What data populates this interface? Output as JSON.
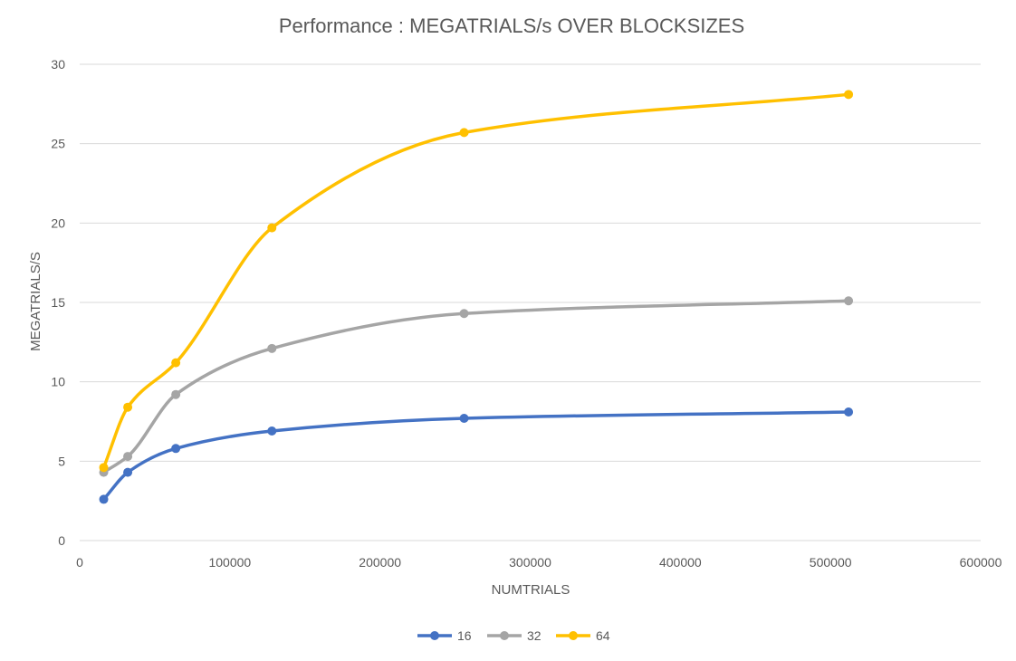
{
  "chart_data": {
    "type": "scatter",
    "title": "Performance : MEGATRIALS/s OVER BLOCKSIZES",
    "xlabel": "NUMTRIALS",
    "ylabel": "MEGATRIALS/S",
    "xlim": [
      0,
      600000
    ],
    "ylim": [
      0,
      30
    ],
    "x_ticks": [
      "0",
      "100000",
      "200000",
      "300000",
      "400000",
      "500000",
      "600000"
    ],
    "y_ticks": [
      "0",
      "5",
      "10",
      "15",
      "20",
      "25",
      "30"
    ],
    "grid": true,
    "smooth_lines": true,
    "legend_position": "bottom",
    "x": [
      16000,
      32000,
      64000,
      128000,
      256000,
      512000
    ],
    "series": [
      {
        "name": "16",
        "color": "#4472C4",
        "values": [
          2.6,
          4.3,
          5.8,
          6.9,
          7.7,
          8.1
        ]
      },
      {
        "name": "32",
        "color": "#A5A5A5",
        "values": [
          4.3,
          5.3,
          9.2,
          12.1,
          14.3,
          15.1
        ]
      },
      {
        "name": "64",
        "color": "#FFC000",
        "values": [
          4.6,
          8.4,
          11.2,
          19.7,
          25.7,
          28.1
        ]
      }
    ]
  }
}
